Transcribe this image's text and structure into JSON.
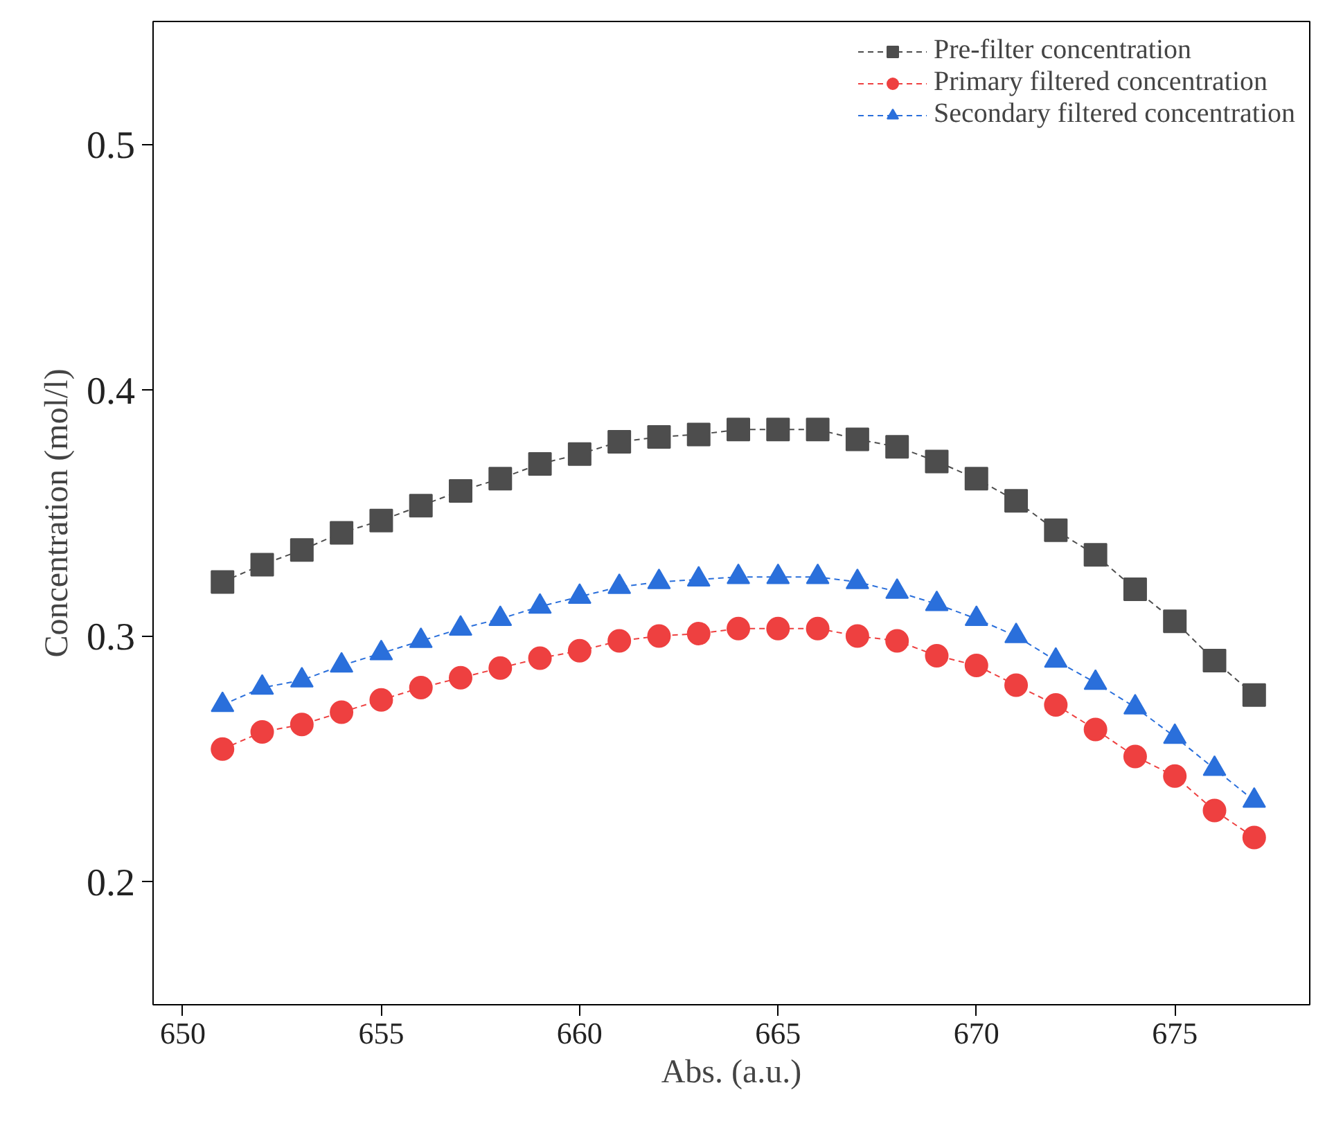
{
  "chart_data": {
    "type": "line",
    "xlabel": "Abs. (a.u.)",
    "ylabel": "Concentration (mol/l)",
    "x": [
      651,
      652,
      653,
      654,
      655,
      656,
      657,
      658,
      659,
      660,
      661,
      662,
      663,
      664,
      665,
      666,
      667,
      668,
      669,
      670,
      671,
      672,
      673,
      674,
      675,
      676,
      677
    ],
    "series": [
      {
        "name": "Pre-filter concentration",
        "color": "#4d4d4d",
        "marker": "square",
        "values": [
          0.322,
          0.329,
          0.335,
          0.342,
          0.347,
          0.353,
          0.359,
          0.364,
          0.37,
          0.374,
          0.379,
          0.381,
          0.382,
          0.384,
          0.384,
          0.384,
          0.38,
          0.377,
          0.371,
          0.364,
          0.355,
          0.343,
          0.333,
          0.319,
          0.306,
          0.29,
          0.276
        ]
      },
      {
        "name": "Primary filtered concentration",
        "color": "#ee4040",
        "marker": "circle",
        "values": [
          0.254,
          0.261,
          0.264,
          0.269,
          0.274,
          0.279,
          0.283,
          0.287,
          0.291,
          0.294,
          0.298,
          0.3,
          0.301,
          0.303,
          0.303,
          0.303,
          0.3,
          0.298,
          0.292,
          0.288,
          0.28,
          0.272,
          0.262,
          0.251,
          0.243,
          0.229,
          0.218
        ]
      },
      {
        "name": "Secondary filtered concentration",
        "color": "#2a6fdb",
        "marker": "triangle",
        "values": [
          0.272,
          0.279,
          0.282,
          0.288,
          0.293,
          0.298,
          0.303,
          0.307,
          0.312,
          0.316,
          0.32,
          0.322,
          0.323,
          0.324,
          0.324,
          0.324,
          0.322,
          0.318,
          0.313,
          0.307,
          0.3,
          0.29,
          0.281,
          0.271,
          0.259,
          0.246,
          0.233
        ]
      }
    ],
    "line_style": "dashed",
    "xlim": [
      649.25,
      678.4
    ],
    "ylim": [
      0.15,
      0.55
    ],
    "xticks": [
      650,
      655,
      660,
      665,
      670,
      675
    ],
    "yticks": [
      0.2,
      0.3,
      0.4,
      0.5
    ],
    "grid": false,
    "legend": "top right"
  }
}
